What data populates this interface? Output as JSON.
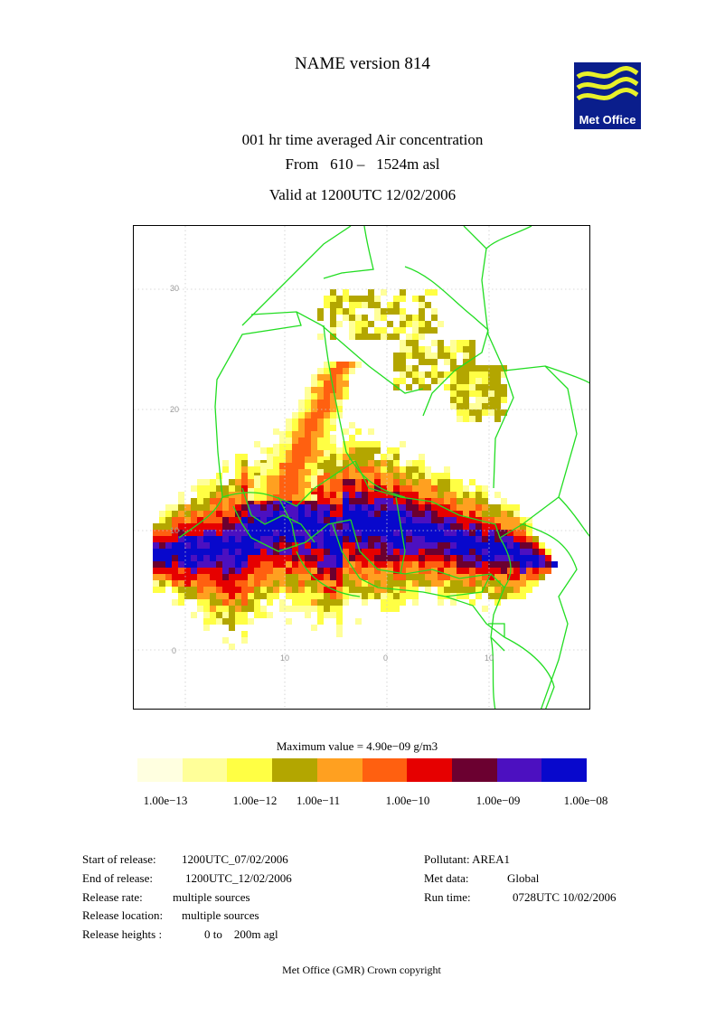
{
  "header": {
    "model_title": "NAME version 814",
    "subtitle_line1": "001 hr time averaged   Air concentration",
    "subtitle_line2": "From   610 –   1524m asl",
    "valid_line": "Valid at 1200UTC 12/02/2006",
    "logo_text": "Met Office"
  },
  "map": {
    "lat_labels": [
      "30",
      "20",
      "10",
      "0"
    ],
    "lon_labels": [
      "10",
      "0",
      "10"
    ],
    "border_color": "#22dd22",
    "grid_color": "#cccccc"
  },
  "legend": {
    "max_value": "Maximum value = 4.90e−09 g/m3",
    "colors": [
      "#ffffe0",
      "#ffff99",
      "#ffff44",
      "#b3a600",
      "#ffa020",
      "#ff6010",
      "#e60000",
      "#6b0030",
      "#4c10c0",
      "#0808cc"
    ],
    "labels": [
      "1.00e−13",
      "1.00e−12",
      "1.00e−11",
      "1.00e−10",
      "1.00e−09",
      "1.00e−08"
    ]
  },
  "release_info": {
    "start_label": "Start of release:",
    "start_value": "1200UTC_07/02/2006",
    "end_label": "End of release:",
    "end_value": "1200UTC_12/02/2006",
    "rate_label": "Release rate:",
    "rate_value": "multiple sources",
    "location_label": "Release location:",
    "location_value": "multiple sources",
    "heights_label": "Release heights :",
    "heights_value": "0 to    200m agl"
  },
  "run_info": {
    "pollutant_label": "Pollutant:",
    "pollutant_value": "AREA1",
    "met_label": "Met data:",
    "met_value": "Global",
    "run_label": "Run time:",
    "run_value": "0728UTC 10/02/2006"
  },
  "footer": {
    "text": "Met Office (GMR)  Crown copyright"
  }
}
